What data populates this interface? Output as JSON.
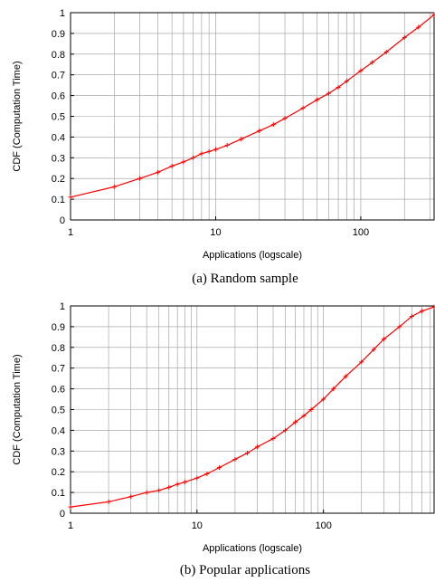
{
  "chart_data": [
    {
      "type": "line",
      "caption": "(a) Random sample",
      "xlabel": "Applications (logscale)",
      "ylabel": "CDF (Computation Time)",
      "xscale": "log",
      "xlim": [
        1,
        320
      ],
      "ylim": [
        0,
        1
      ],
      "grid": true,
      "color": "#ff0000",
      "xticks": [
        {
          "v": 1,
          "label": "1"
        },
        {
          "v": 10,
          "label": "10"
        },
        {
          "v": 100,
          "label": "100"
        }
      ],
      "yticks": [
        "0",
        "0.1",
        "0.2",
        "0.3",
        "0.4",
        "0.5",
        "0.6",
        "0.7",
        "0.8",
        "0.9",
        "1"
      ],
      "series": [
        {
          "x": [
            1,
            2,
            3,
            4,
            5,
            6,
            7,
            8,
            9,
            10,
            12,
            15,
            20,
            25,
            30,
            40,
            50,
            60,
            70,
            80,
            100,
            120,
            150,
            200,
            250,
            320
          ],
          "y": [
            0.11,
            0.16,
            0.2,
            0.23,
            0.26,
            0.28,
            0.3,
            0.32,
            0.33,
            0.34,
            0.36,
            0.39,
            0.43,
            0.46,
            0.49,
            0.54,
            0.58,
            0.61,
            0.64,
            0.67,
            0.72,
            0.76,
            0.81,
            0.88,
            0.93,
            0.99
          ]
        }
      ]
    },
    {
      "type": "line",
      "caption": "(b) Popular applications",
      "xlabel": "Applications (logscale)",
      "ylabel": "CDF (Computation Time)",
      "xscale": "log",
      "xlim": [
        1,
        750
      ],
      "ylim": [
        0,
        1
      ],
      "grid": true,
      "color": "#ff0000",
      "xticks": [
        {
          "v": 1,
          "label": "1"
        },
        {
          "v": 10,
          "label": "10"
        },
        {
          "v": 100,
          "label": "100"
        }
      ],
      "yticks": [
        "0",
        "0.1",
        "0.2",
        "0.3",
        "0.4",
        "0.5",
        "0.6",
        "0.7",
        "0.8",
        "0.9",
        "1"
      ],
      "series": [
        {
          "x": [
            1,
            2,
            3,
            4,
            5,
            6,
            7,
            8,
            10,
            12,
            15,
            20,
            25,
            30,
            40,
            50,
            60,
            70,
            80,
            100,
            120,
            150,
            200,
            250,
            300,
            400,
            500,
            600,
            750
          ],
          "y": [
            0.03,
            0.055,
            0.08,
            0.1,
            0.11,
            0.125,
            0.14,
            0.15,
            0.17,
            0.19,
            0.22,
            0.26,
            0.29,
            0.32,
            0.36,
            0.4,
            0.44,
            0.47,
            0.5,
            0.55,
            0.6,
            0.66,
            0.73,
            0.79,
            0.84,
            0.9,
            0.95,
            0.975,
            0.995
          ]
        }
      ]
    }
  ]
}
